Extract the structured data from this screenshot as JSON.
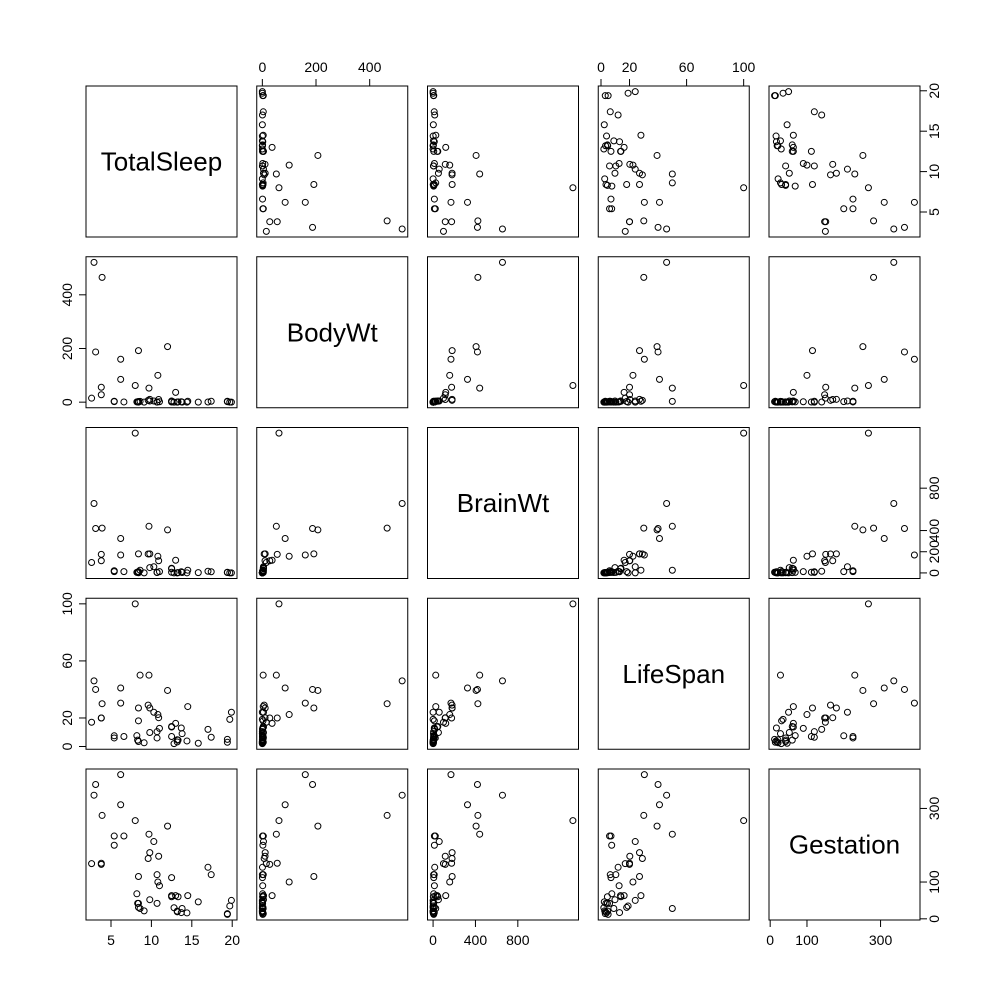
{
  "chart_data": {
    "type": "scatter-matrix",
    "variables": [
      {
        "name": "TotalSleep",
        "lim": [
          1.908,
          20.592
        ],
        "xticks": [
          5,
          10,
          15,
          20
        ],
        "yticks": [
          5,
          10,
          15,
          20
        ],
        "values": [
          8.3,
          12.5,
          9.8,
          19.7,
          6.2,
          14.5,
          9.7,
          12.5,
          3.9,
          3.1,
          8.4,
          8.6,
          10.7,
          10.7,
          3.8,
          14.4,
          12,
          6.2,
          13,
          13.8,
          8.2,
          2.9,
          10.8,
          9.1,
          19.9,
          8,
          13.2,
          12.8,
          19.4,
          17.4,
          17,
          10.9,
          13.7,
          8.4,
          8.4,
          12.5,
          13.2,
          9.8,
          9.6,
          6.6,
          5.4,
          2.6,
          3.8,
          11,
          13.3,
          5.4,
          15.8,
          10.3,
          19.4
        ]
      },
      {
        "name": "BodyWt",
        "lim": [
          -20.84,
          541.84
        ],
        "xticks": [
          0,
          200,
          400
        ],
        "yticks": [
          0,
          200,
          400
        ],
        "values": [
          1,
          3.385,
          10.55,
          0.023,
          160,
          3.3,
          52.16,
          0.425,
          465,
          187.1,
          0.075,
          3,
          0.785,
          0.2,
          27.66,
          0.12,
          207,
          85,
          36.33,
          0.101,
          1.04,
          521,
          100,
          0.005,
          0.01,
          62,
          0.023,
          0.048,
          1.7,
          3.5,
          0.48,
          10,
          1.62,
          192,
          2.5,
          4.288,
          0.28,
          4.235,
          6.8,
          0.75,
          3.6,
          14.83,
          55.5,
          1.4,
          0.9,
          2,
          0.104,
          4.19,
          3.5
        ]
      },
      {
        "name": "BrainWt",
        "lim": [
          -52.66,
          1372.8
        ],
        "xticks": [
          0,
          400,
          800
        ],
        "yticks": [
          0,
          200,
          400,
          800
        ],
        "values": [
          6.6,
          44.5,
          179.5,
          0.3,
          169,
          25.6,
          440,
          6.4,
          423,
          419,
          1.2,
          25,
          3.5,
          5,
          115,
          1,
          406,
          325,
          119.5,
          4,
          5.5,
          655,
          157,
          0.14,
          0.25,
          1320,
          0.4,
          0.33,
          6.3,
          10.8,
          15.5,
          115,
          11.4,
          180,
          12.1,
          39.2,
          1.9,
          50.4,
          179,
          12.3,
          21,
          98.2,
          175,
          12.5,
          2.6,
          12.3,
          2.5,
          58,
          3.9
        ]
      },
      {
        "name": "LifeSpan",
        "lim": [
          -1.92,
          103.92
        ],
        "xticks": [
          0,
          20,
          60,
          100
        ],
        "yticks": [
          0,
          20,
          60,
          100
        ],
        "values": [
          4.5,
          14,
          27,
          19,
          30.4,
          28,
          50,
          7,
          30,
          40,
          3.5,
          50,
          6,
          10.4,
          20,
          3.9,
          39.3,
          41,
          16.2,
          9,
          7.6,
          46,
          22.4,
          2.6,
          24,
          100,
          3.2,
          2,
          5,
          6.5,
          12,
          20.2,
          13,
          27,
          18,
          13.7,
          4.7,
          9.8,
          29,
          7,
          6,
          17,
          20,
          12.7,
          4.5,
          7.5,
          2.3,
          24,
          3
        ]
      },
      {
        "name": "Gestation",
        "lim": [
          -3.2,
          407.2
        ],
        "xticks": [
          0,
          100,
          300
        ],
        "yticks": [
          0,
          100,
          300
        ],
        "values": [
          42,
          60,
          180,
          35,
          392,
          63,
          230,
          112,
          281,
          365,
          42,
          28,
          42,
          120,
          148,
          16,
          252,
          310,
          63,
          28,
          68,
          336,
          100,
          21.5,
          50,
          267,
          19,
          30,
          12,
          120,
          140,
          170,
          17,
          115,
          31,
          63,
          21,
          52,
          164,
          225,
          225,
          150,
          151,
          90,
          60,
          200,
          46,
          210,
          14
        ]
      }
    ]
  }
}
